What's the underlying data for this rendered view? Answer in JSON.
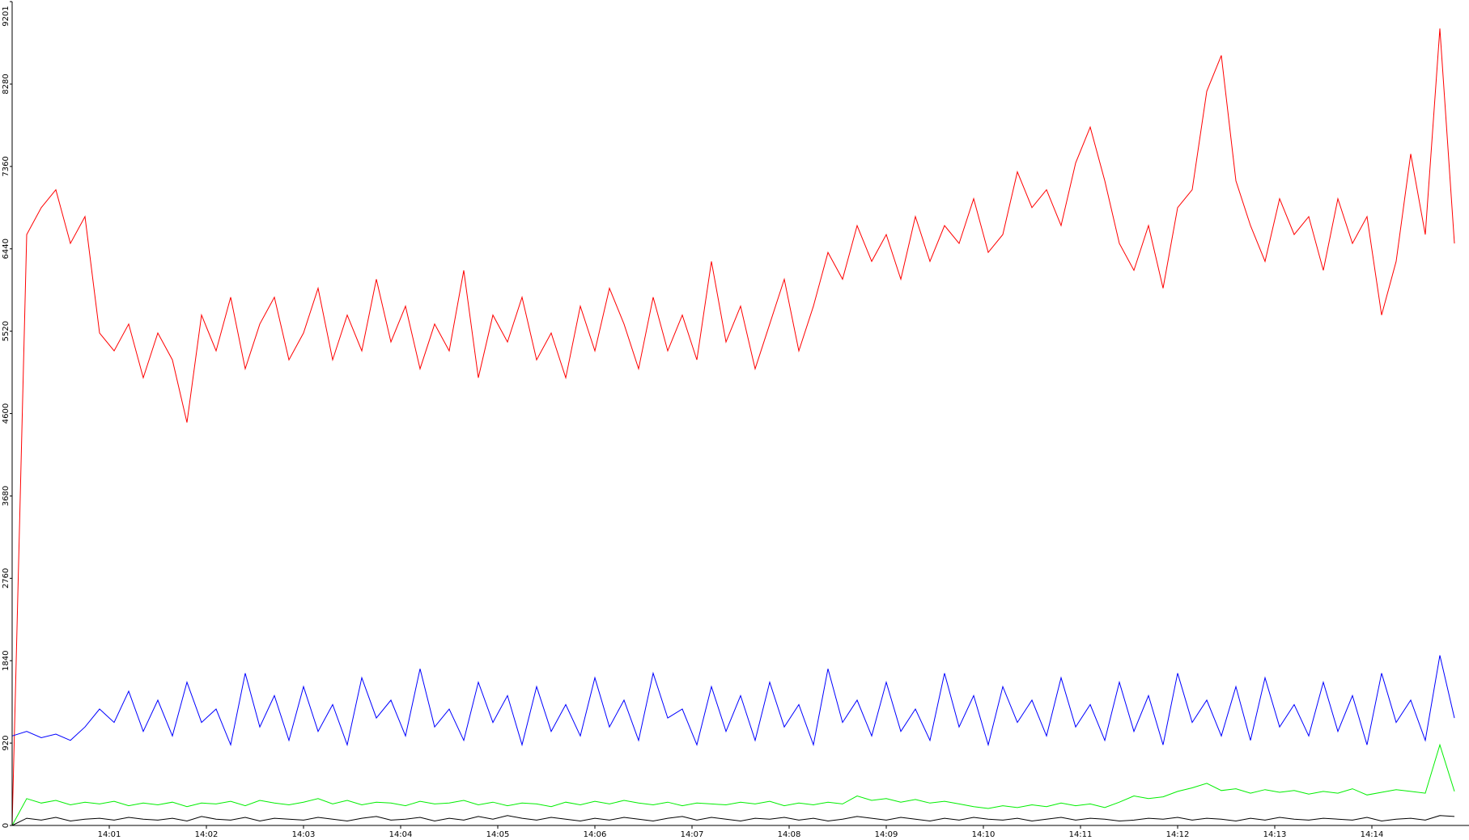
{
  "chart_data": {
    "type": "line",
    "x": [
      0,
      0.15,
      0.3,
      0.45,
      0.6,
      0.75,
      0.9,
      1.05,
      1.2,
      1.35,
      1.5,
      1.65,
      1.8,
      1.95,
      2.1,
      2.25,
      2.4,
      2.55,
      2.7,
      2.85,
      3,
      3.15,
      3.3,
      3.45,
      3.6,
      3.75,
      3.9,
      4.05,
      4.2,
      4.35,
      4.5,
      4.65,
      4.8,
      4.95,
      5.1,
      5.25,
      5.4,
      5.55,
      5.7,
      5.85,
      6,
      6.15,
      6.3,
      6.45,
      6.6,
      6.75,
      6.9,
      7.05,
      7.2,
      7.35,
      7.5,
      7.65,
      7.8,
      7.95,
      8.1,
      8.25,
      8.4,
      8.55,
      8.7,
      8.85,
      9,
      9.15,
      9.3,
      9.45,
      9.6,
      9.75,
      9.9,
      10.05,
      10.2,
      10.35,
      10.5,
      10.65,
      10.8,
      10.95,
      11.1,
      11.25,
      11.4,
      11.55,
      11.7,
      11.85,
      12,
      12.15,
      12.3,
      12.45,
      12.6,
      12.75,
      12.9,
      13.05,
      13.2,
      13.35,
      13.5,
      13.65,
      13.8,
      13.95,
      14.1,
      14.25,
      14.4,
      14.55,
      14.7,
      14.85
    ],
    "series": [
      {
        "color": "#ff0000",
        "values": [
          0,
          6600,
          6900,
          7100,
          6500,
          6800,
          5500,
          5300,
          5600,
          5000,
          5500,
          5200,
          4500,
          5700,
          5300,
          5900,
          5100,
          5600,
          5900,
          5200,
          5500,
          6000,
          5200,
          5700,
          5300,
          6100,
          5400,
          5800,
          5100,
          5600,
          5300,
          6200,
          5000,
          5700,
          5400,
          5900,
          5200,
          5500,
          5000,
          5800,
          5300,
          6000,
          5600,
          5100,
          5900,
          5300,
          5700,
          5200,
          6300,
          5400,
          5800,
          5100,
          5600,
          6100,
          5300,
          5800,
          6400,
          6100,
          6700,
          6300,
          6600,
          6100,
          6800,
          6300,
          6700,
          6500,
          7000,
          6400,
          6600,
          7300,
          6900,
          7100,
          6700,
          7400,
          7800,
          7200,
          6500,
          6200,
          6700,
          6000,
          6900,
          7100,
          8200,
          8600,
          7200,
          6700,
          6300,
          7000,
          6600,
          6800,
          6200,
          7000,
          6500,
          6800,
          5700,
          6300,
          7500,
          6600,
          8900,
          6500
        ]
      },
      {
        "color": "#0000ff",
        "values": [
          1000,
          1050,
          980,
          1020,
          950,
          1100,
          1300,
          1150,
          1500,
          1050,
          1400,
          1000,
          1600,
          1150,
          1300,
          900,
          1700,
          1100,
          1450,
          950,
          1550,
          1050,
          1350,
          900,
          1650,
          1200,
          1400,
          1000,
          1750,
          1100,
          1300,
          950,
          1600,
          1150,
          1450,
          900,
          1550,
          1050,
          1350,
          1000,
          1650,
          1100,
          1400,
          950,
          1700,
          1200,
          1300,
          900,
          1550,
          1050,
          1450,
          950,
          1600,
          1100,
          1350,
          900,
          1750,
          1150,
          1400,
          1000,
          1600,
          1050,
          1300,
          950,
          1700,
          1100,
          1450,
          900,
          1550,
          1150,
          1400,
          1000,
          1650,
          1100,
          1350,
          950,
          1600,
          1050,
          1450,
          900,
          1700,
          1150,
          1400,
          1000,
          1550,
          950,
          1650,
          1100,
          1350,
          1000,
          1600,
          1050,
          1450,
          900,
          1700,
          1150,
          1400,
          950,
          1900,
          1200
        ]
      },
      {
        "color": "#00ee00",
        "values": [
          0,
          300,
          250,
          280,
          230,
          260,
          240,
          270,
          220,
          250,
          230,
          260,
          210,
          250,
          240,
          270,
          220,
          280,
          250,
          230,
          260,
          300,
          240,
          280,
          230,
          260,
          250,
          220,
          270,
          240,
          250,
          280,
          230,
          260,
          220,
          250,
          240,
          210,
          260,
          230,
          270,
          240,
          280,
          250,
          230,
          260,
          220,
          250,
          240,
          230,
          260,
          240,
          270,
          220,
          250,
          230,
          260,
          240,
          330,
          280,
          300,
          260,
          290,
          250,
          270,
          240,
          210,
          190,
          220,
          200,
          230,
          210,
          250,
          220,
          240,
          200,
          260,
          330,
          300,
          320,
          380,
          420,
          470,
          390,
          410,
          360,
          400,
          370,
          390,
          350,
          380,
          360,
          410,
          340,
          370,
          400,
          380,
          360,
          900,
          380
        ]
      },
      {
        "color": "#000000",
        "values": [
          0,
          80,
          60,
          90,
          50,
          70,
          80,
          60,
          90,
          70,
          60,
          80,
          50,
          100,
          70,
          60,
          90,
          50,
          80,
          70,
          60,
          90,
          70,
          50,
          80,
          100,
          60,
          70,
          90,
          50,
          80,
          60,
          100,
          70,
          110,
          80,
          60,
          90,
          70,
          50,
          80,
          60,
          90,
          70,
          50,
          80,
          100,
          60,
          90,
          70,
          50,
          80,
          70,
          90,
          60,
          80,
          50,
          70,
          100,
          80,
          60,
          90,
          70,
          50,
          80,
          60,
          90,
          70,
          60,
          80,
          50,
          70,
          90,
          60,
          80,
          70,
          50,
          60,
          80,
          70,
          90,
          60,
          80,
          70,
          50,
          80,
          60,
          90,
          70,
          60,
          80,
          70,
          60,
          90,
          50,
          70,
          80,
          60,
          110,
          100
        ]
      }
    ],
    "xlim": [
      0,
      15
    ],
    "xticks": [
      {
        "value": 1,
        "label": "14:01"
      },
      {
        "value": 2,
        "label": "14:02"
      },
      {
        "value": 3,
        "label": "14:03"
      },
      {
        "value": 4,
        "label": "14:04"
      },
      {
        "value": 5,
        "label": "14:05"
      },
      {
        "value": 6,
        "label": "14:06"
      },
      {
        "value": 7,
        "label": "14:07"
      },
      {
        "value": 8,
        "label": "14:08"
      },
      {
        "value": 9,
        "label": "14:09"
      },
      {
        "value": 10,
        "label": "14:10"
      },
      {
        "value": 11,
        "label": "14:11"
      },
      {
        "value": 12,
        "label": "14:12"
      },
      {
        "value": 13,
        "label": "14:13"
      },
      {
        "value": 14,
        "label": "14:14"
      }
    ],
    "ylim": [
      0,
      9201
    ],
    "yticks": [
      0,
      920,
      1840,
      2760,
      3680,
      4600,
      5520,
      6440,
      7360,
      8280,
      9201
    ]
  }
}
